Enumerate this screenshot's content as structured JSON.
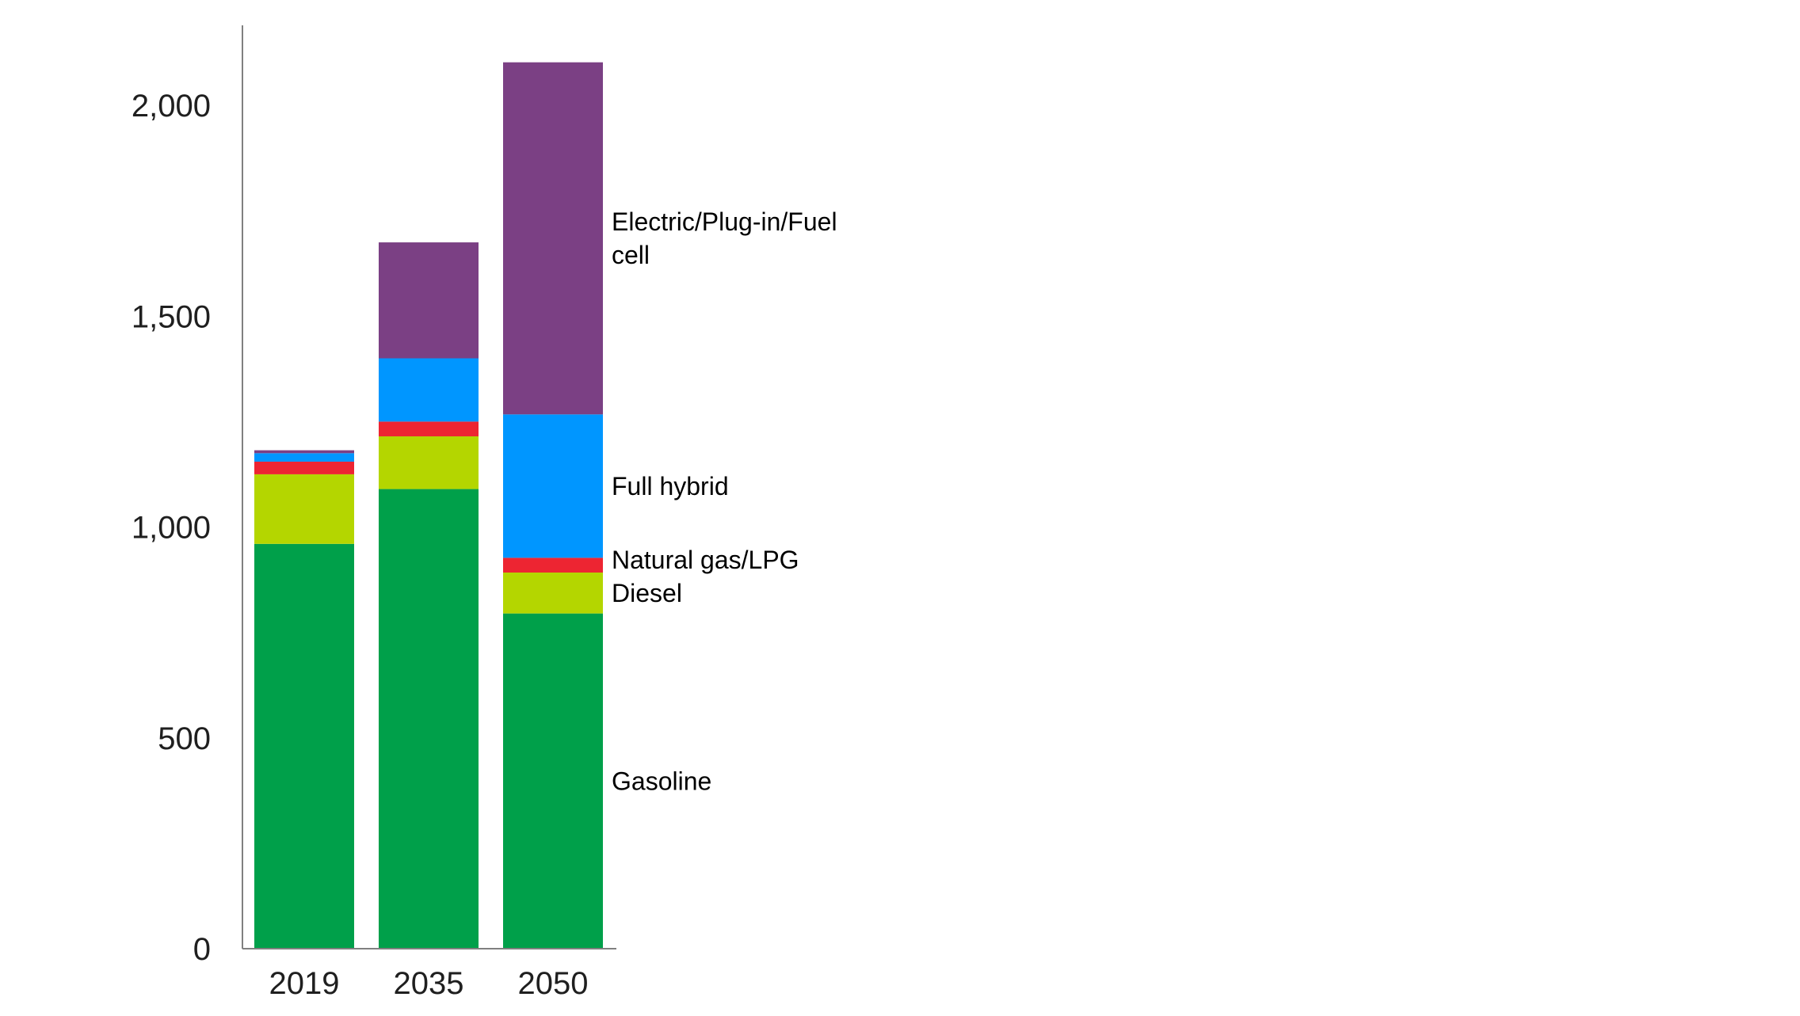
{
  "chart_data": {
    "type": "bar",
    "stacked": true,
    "categories": [
      "2019",
      "2035",
      "2050"
    ],
    "series": [
      {
        "name": "Gasoline",
        "color": "#00a04a",
        "values": [
          960,
          1090,
          795
        ]
      },
      {
        "name": "Diesel",
        "color": "#b4d600",
        "values": [
          165,
          125,
          97
        ]
      },
      {
        "name": "Natural gas/LPG",
        "color": "#ed2532",
        "values": [
          30,
          35,
          35
        ]
      },
      {
        "name": "Full hybrid",
        "color": "#0096ff",
        "values": [
          20,
          150,
          340
        ]
      },
      {
        "name": "Electric/Plug-in/Fuel cell",
        "color": "#7b4084",
        "values": [
          7,
          275,
          835
        ]
      }
    ],
    "series_label_lines": [
      [
        "Gasoline"
      ],
      [
        "Diesel"
      ],
      [
        "Natural gas/LPG"
      ],
      [
        "Full hybrid"
      ],
      [
        "Electric/Plug-in/Fuel",
        "cell"
      ]
    ],
    "yticks": [
      0,
      500,
      1000,
      1500,
      2000
    ],
    "ytick_labels": [
      "0",
      "500",
      "1,000",
      "1,500",
      "2,000"
    ],
    "ylim": [
      0,
      2200
    ],
    "title": "",
    "xlabel": "",
    "ylabel": "",
    "grid": false,
    "legend": "direct labels right of last bar"
  }
}
